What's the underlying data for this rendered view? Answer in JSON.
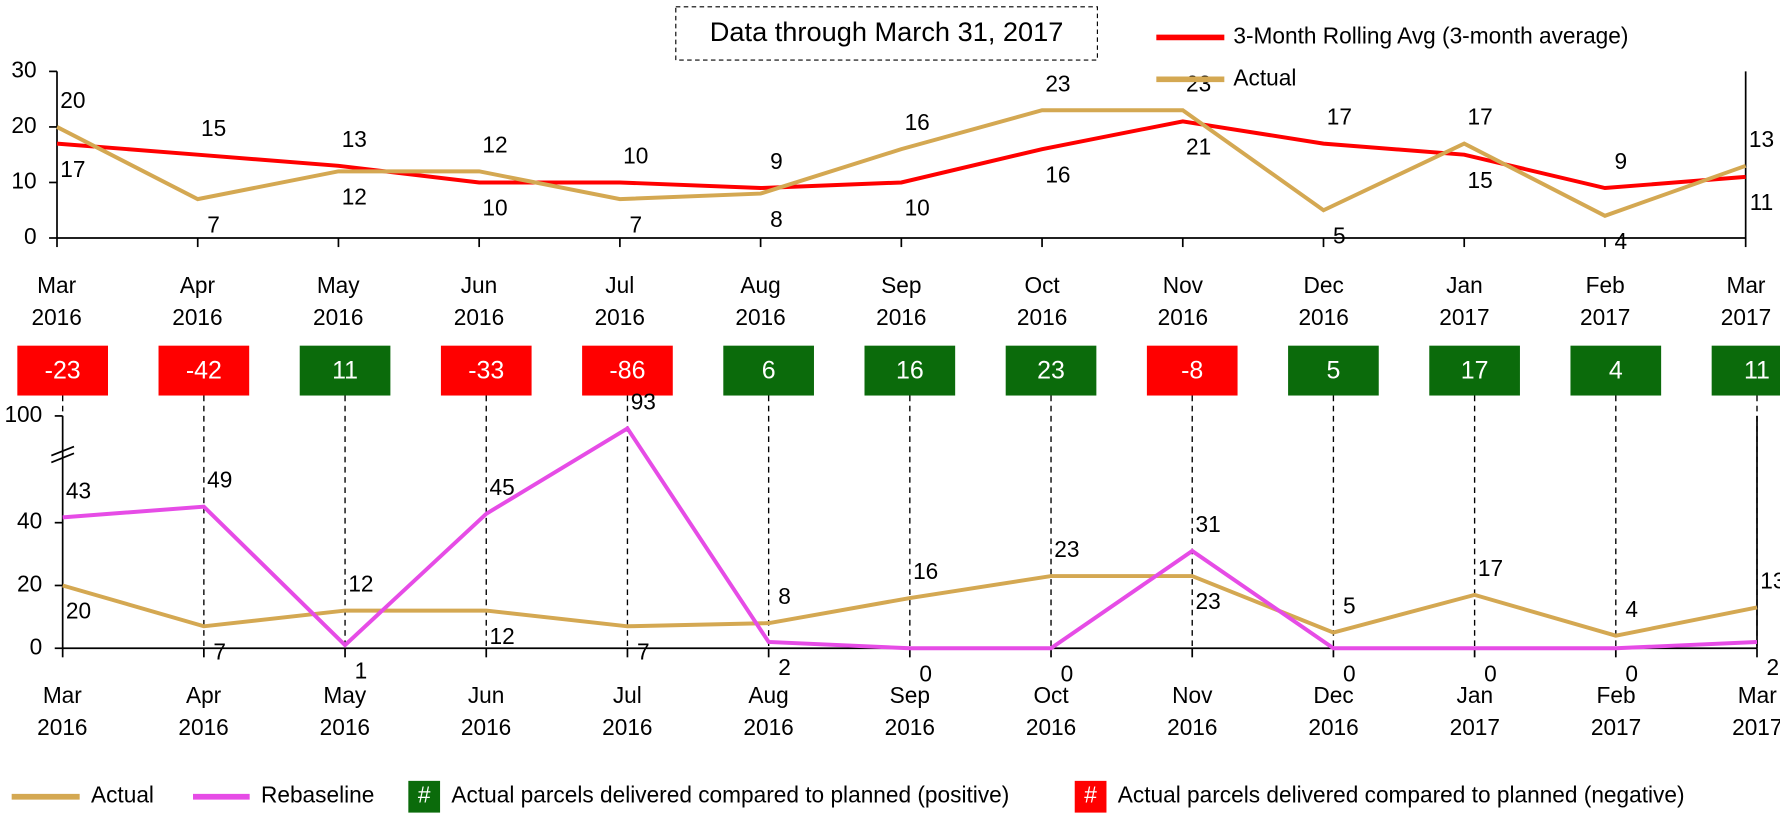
{
  "chart_data": [
    {
      "type": "line",
      "title": "Data through March 31, 2017",
      "categories": [
        "Mar 2016",
        "Apr 2016",
        "May 2016",
        "Jun 2016",
        "Jul 2016",
        "Aug 2016",
        "Sep 2016",
        "Oct 2016",
        "Nov 2016",
        "Dec 2016",
        "Jan 2017",
        "Feb 2017",
        "Mar 2017"
      ],
      "series": [
        {
          "name": "3-Month Rolling Avg (3-month average)",
          "color": "#ff0000",
          "values": [
            17,
            15,
            13,
            10,
            10,
            9,
            10,
            16,
            21,
            17,
            15,
            9,
            11
          ]
        },
        {
          "name": "Actual",
          "color": "#d4a852",
          "values": [
            20,
            7,
            12,
            12,
            7,
            8,
            16,
            23,
            23,
            5,
            17,
            4,
            13
          ]
        }
      ],
      "ylim": [
        0,
        30
      ],
      "yticks": [
        0,
        10,
        20,
        30
      ]
    },
    {
      "type": "line",
      "categories": [
        "Mar 2016",
        "Apr 2016",
        "May 2016",
        "Jun 2016",
        "Jul 2016",
        "Aug 2016",
        "Sep 2016",
        "Oct 2016",
        "Nov 2016",
        "Dec 2016",
        "Jan 2017",
        "Feb 2017",
        "Mar 2017"
      ],
      "series": [
        {
          "name": "Actual",
          "color": "#d4a852",
          "values": [
            20,
            7,
            12,
            12,
            7,
            8,
            16,
            23,
            23,
            5,
            17,
            4,
            13
          ]
        },
        {
          "name": "Rebaseline",
          "color": "#e64ce6",
          "values": [
            43,
            49,
            1,
            45,
            93,
            2,
            0,
            0,
            31,
            0,
            0,
            0,
            2
          ]
        }
      ],
      "ylim": [
        0,
        100
      ],
      "yticks": [
        0,
        20,
        40,
        100
      ],
      "axis_break": true,
      "variance": {
        "values": [
          -23,
          -42,
          11,
          -33,
          -86,
          6,
          16,
          23,
          -8,
          5,
          17,
          4,
          11
        ],
        "legend": [
          {
            "symbol": "#",
            "label": "Actual parcels delivered compared to planned (positive)",
            "color": "#0b6b0b"
          },
          {
            "symbol": "#",
            "label": "Actual parcels delivered compared to planned (negative)",
            "color": "#ff0000"
          }
        ]
      }
    }
  ]
}
